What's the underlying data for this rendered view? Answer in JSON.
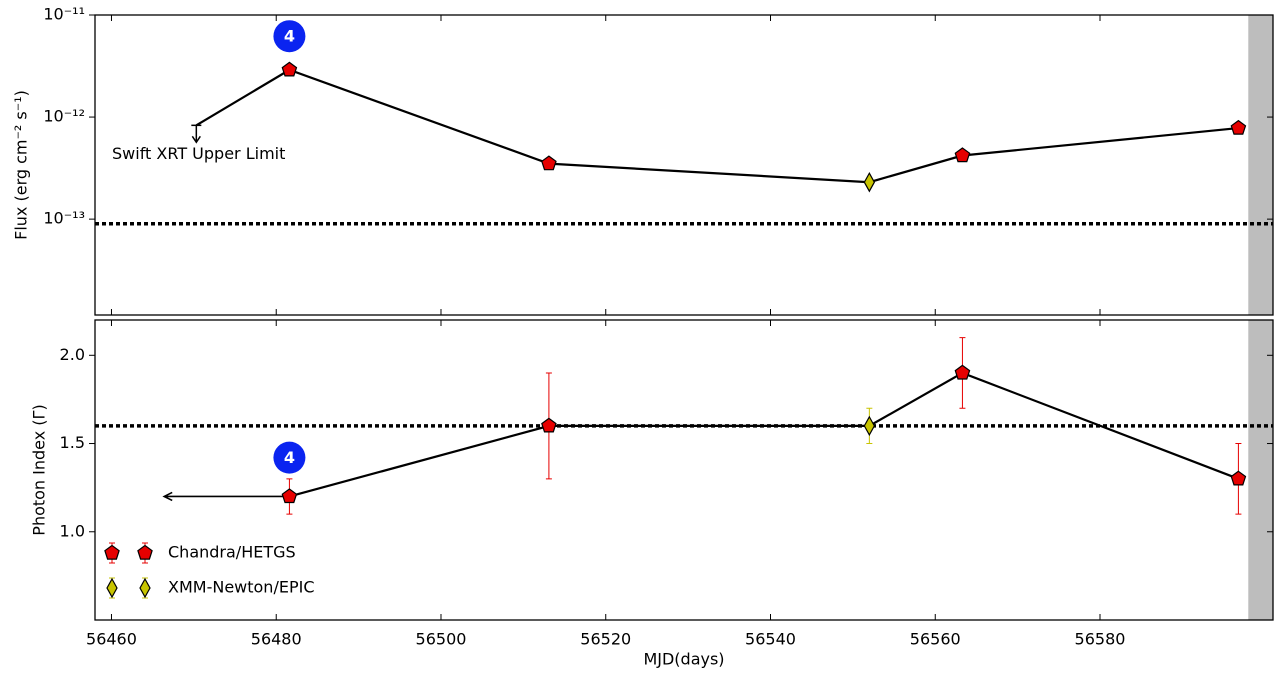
{
  "chart_data": [
    {
      "type": "line",
      "log_y": true,
      "ylabel": "Flux (erg cm⁻² s⁻¹)",
      "xlim": [
        56458,
        56601
      ],
      "xticks": [
        56460,
        56480,
        56500,
        56520,
        56540,
        56560,
        56580
      ],
      "ylim": [
        1.15e-14,
        1e-11
      ],
      "yticks": [
        {
          "value": 1e-11,
          "label": "10⁻¹¹"
        },
        {
          "value": 1e-12,
          "label": "10⁻¹²"
        },
        {
          "value": 1e-13,
          "label": "10⁻¹³"
        }
      ],
      "x": [
        56481.6,
        56513.1,
        56552.0,
        56563.3,
        56596.8
      ],
      "values": [
        2.9e-12,
        3.5e-13,
        2.3e-13,
        4.2e-13,
        7.8e-13
      ],
      "instrument": [
        0,
        0,
        1,
        0,
        0
      ],
      "markers": [
        {
          "marker": "pentagon",
          "color": "#e60000"
        },
        {
          "marker": "diamond",
          "color": "#c8c400"
        }
      ],
      "upper_limit": {
        "x": 56470.3,
        "value": 8.3e-13,
        "label": "Swift XRT Upper Limit"
      },
      "reference_line": 9e-14,
      "shaded_span": [
        56598,
        56601
      ],
      "badge": {
        "text": "4",
        "x": 56481.6,
        "y": 6.2e-12
      }
    },
    {
      "type": "errorbar",
      "ylabel": "Photon Index (Γ)",
      "xlabel": "MJD(days)",
      "xlim": [
        56458,
        56601
      ],
      "xticks": [
        56460,
        56480,
        56500,
        56520,
        56540,
        56560,
        56580
      ],
      "ylim": [
        0.5,
        2.2
      ],
      "yticks": [
        {
          "value": 1.0,
          "label": "1.0"
        },
        {
          "value": 1.5,
          "label": "1.5"
        },
        {
          "value": 2.0,
          "label": "2.0"
        }
      ],
      "x": [
        56481.6,
        56513.1,
        56552.0,
        56563.3,
        56596.8
      ],
      "values": [
        1.2,
        1.6,
        1.6,
        1.9,
        1.3
      ],
      "errors": [
        0.1,
        0.3,
        0.1,
        0.2,
        0.2
      ],
      "instrument": [
        0,
        0,
        1,
        0,
        0
      ],
      "markers": [
        {
          "name": "Chandra/HETGS",
          "marker": "pentagon",
          "color": "#e60000"
        },
        {
          "name": "XMM-Newton/EPIC",
          "marker": "diamond",
          "color": "#c8c400"
        }
      ],
      "legend": "lower left",
      "limit_arrow_to_x": 56466.4,
      "reference_line": 1.6,
      "shaded_span": [
        56598,
        56601
      ],
      "badge": {
        "text": "4",
        "x": 56481.6,
        "y": 1.42
      }
    }
  ]
}
